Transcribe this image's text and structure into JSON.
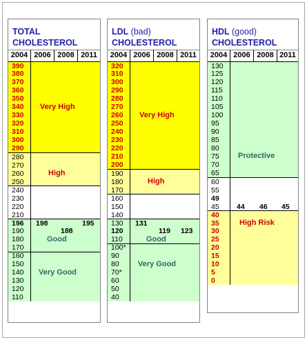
{
  "years": [
    "2004",
    "2006",
    "2008",
    "2011"
  ],
  "colors": {
    "very_high": "#ffff00",
    "high": "#ffff99",
    "neutral": "#ffffff",
    "good": "#ccffcc",
    "title_blue": "#1f1fa8",
    "risk_red": "#cc0000",
    "good_teal": "#336666"
  },
  "panels": [
    {
      "id": "total",
      "title_line1": "TOTAL",
      "title_paren": "",
      "title_line2": "CHOLESTEROL",
      "zones": [
        {
          "name": "Very High",
          "color": "very_high",
          "label_color": "risk_red",
          "scale_color": "risk_red",
          "scale_bold": true,
          "scale": [
            "390",
            "380",
            "370",
            "360",
            "350",
            "340",
            "330",
            "320",
            "310",
            "300",
            "290"
          ]
        },
        {
          "name": "High",
          "color": "high",
          "label_color": "risk_red",
          "scale_color": "black",
          "scale_bold": false,
          "scale": [
            "280",
            "270",
            "260",
            "250"
          ]
        },
        {
          "name": "",
          "color": "neutral",
          "label_color": "black",
          "scale_color": "black",
          "scale_bold": false,
          "scale": [
            "240",
            "230",
            "220",
            "210"
          ]
        },
        {
          "name": "Good",
          "color": "good",
          "label_color": "good_teal",
          "scale_color": "black",
          "scale_bold": false,
          "scale": [
            "196",
            "190",
            "180",
            "170"
          ],
          "bold_first": true
        },
        {
          "name": "Very Good",
          "color": "good",
          "label_color": "good_teal",
          "scale_color": "black",
          "scale_bold": false,
          "scale": [
            "160",
            "150",
            "140",
            "130",
            "120",
            "110"
          ]
        }
      ],
      "values": {
        "y2006": "198",
        "y2008": "188",
        "y2011": "195"
      }
    },
    {
      "id": "ldl",
      "title_line1": "LDL",
      "title_paren": "(bad)",
      "title_line2": "CHOLESTEROL",
      "zones": [
        {
          "name": "Very High",
          "color": "very_high",
          "label_color": "risk_red",
          "scale_color": "risk_red",
          "scale_bold": true,
          "scale": [
            "320",
            "310",
            "300",
            "290",
            "280",
            "270",
            "260",
            "250",
            "240",
            "230",
            "220",
            "210",
            "200"
          ]
        },
        {
          "name": "High",
          "color": "high",
          "label_color": "risk_red",
          "scale_color": "black",
          "scale_bold": false,
          "scale": [
            "190",
            "180",
            "170"
          ]
        },
        {
          "name": "",
          "color": "neutral",
          "label_color": "black",
          "scale_color": "black",
          "scale_bold": false,
          "scale": [
            "160",
            "150",
            "140"
          ]
        },
        {
          "name": "Good",
          "color": "good",
          "label_color": "good_teal",
          "scale_color": "black",
          "scale_bold": false,
          "scale": [
            "130",
            "120",
            "110"
          ],
          "bold_second": true
        },
        {
          "name": "Very Good",
          "color": "good",
          "label_color": "good_teal",
          "scale_color": "black",
          "scale_bold": false,
          "scale": [
            "100*",
            "90",
            "80",
            "70*",
            "60",
            "50",
            "40"
          ]
        }
      ],
      "values": {
        "y2006": "131",
        "y2008": "119",
        "y2011": "123"
      }
    },
    {
      "id": "hdl",
      "title_line1": "HDL",
      "title_paren": "(good)",
      "title_line2": "CHOLESTEROL",
      "zones": [
        {
          "name": "Protective",
          "color": "good",
          "label_color": "good_teal",
          "scale_color": "black",
          "scale_bold": false,
          "scale": [
            "130",
            "125",
            "120",
            "115",
            "110",
            "105",
            "100",
            "95",
            "90",
            "85",
            "80",
            "75",
            "70",
            "65"
          ]
        },
        {
          "name": "",
          "color": "neutral",
          "label_color": "black",
          "scale_color": "black",
          "scale_bold": false,
          "scale": [
            "60",
            "55",
            "49",
            "45"
          ],
          "bold_index": 2
        },
        {
          "name": "High Risk",
          "color": "high",
          "label_color": "risk_red",
          "scale_color": "risk_red",
          "scale_bold": true,
          "scale": [
            "40",
            "35",
            "30",
            "25",
            "20",
            "15",
            "10",
            "5",
            "0"
          ]
        }
      ],
      "values": {
        "y2006": "44",
        "y2008": "46",
        "y2011": "45"
      }
    }
  ]
}
